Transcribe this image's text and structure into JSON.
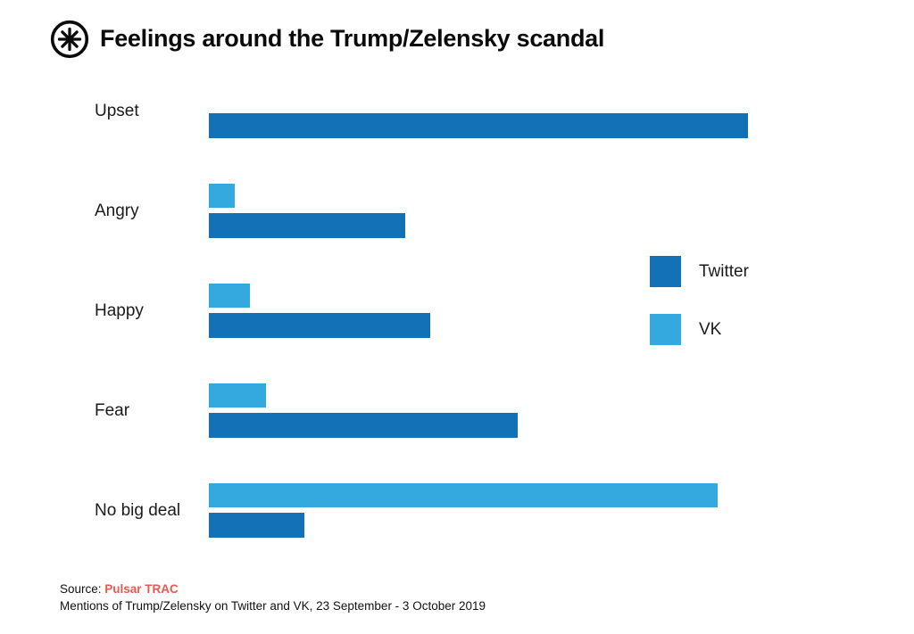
{
  "header": {
    "logo_icon": "pulsar-asterisk-logo",
    "title": "Feelings around the Trump/Zelensky scandal"
  },
  "legend": {
    "items": [
      {
        "label": "Twitter",
        "series": "Twitter"
      },
      {
        "label": "VK",
        "series": "VK"
      }
    ]
  },
  "chart_data": {
    "type": "bar",
    "orientation": "horizontal",
    "title": "Feelings around the Trump/Zelensky scandal",
    "categories": [
      "Upset",
      "Angry",
      "Happy",
      "Fear",
      "No big deal"
    ],
    "series": [
      {
        "name": "Twitter",
        "color": "#1371b8",
        "values": [
          100,
          36.5,
          41,
          57.3,
          17.7
        ]
      },
      {
        "name": "VK",
        "color": "#34a9e0",
        "values": [
          0,
          4.8,
          7.6,
          10.6,
          94.4
        ]
      }
    ],
    "value_scale": "relative bar length, longest bar (Upset / Twitter) = 100; chart shows no numeric axis",
    "xlim": [
      0,
      100
    ],
    "grid": false,
    "legend_position": "center-right",
    "bar_order_note": "VK bar drawn above Twitter bar in each category row; Upset shows no VK bar"
  },
  "footer": {
    "source_prefix": "Source: ",
    "source_link_label": "Pulsar TRAC",
    "source_link_color": "#e8594f",
    "caption": "Mentions of Trump/Zelensky on Twitter and VK, 23 September - 3  October 2019"
  }
}
